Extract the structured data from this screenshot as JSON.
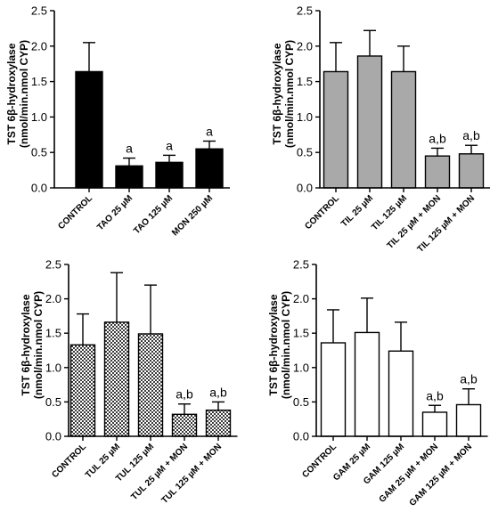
{
  "chart_data": [
    {
      "type": "bar",
      "ylabel_line1": "TST 6β-hydroxylase",
      "ylabel_line2": "(nmol/min.nmol CYP)",
      "ylim": [
        0,
        2.5
      ],
      "yticks": [
        "0.0",
        "0.5",
        "1.0",
        "1.5",
        "2.0",
        "2.5"
      ],
      "fill": "#000000",
      "pattern": "solid",
      "categories": [
        "CONTROL",
        "TAO 25 µM",
        "TAO 125 µM",
        "MON 250 µM"
      ],
      "values": [
        1.64,
        0.31,
        0.36,
        0.55
      ],
      "errors": [
        0.41,
        0.11,
        0.1,
        0.11
      ],
      "significance": [
        "",
        "a",
        "a",
        "a"
      ]
    },
    {
      "type": "bar",
      "ylabel_line1": "TST 6β-hydroxylase",
      "ylabel_line2": "(nmol/min.nmol CYP)",
      "ylim": [
        0,
        2.5
      ],
      "yticks": [
        "0.0",
        "0.5",
        "1.0",
        "1.5",
        "2.0",
        "2.5"
      ],
      "fill": "#a9a9a9",
      "pattern": "solid",
      "categories": [
        "CONTROL",
        "TIL 25 µM",
        "TIL 125 µM",
        "TIL 25 µM + MON",
        "TIL 125 µM + MON"
      ],
      "values": [
        1.64,
        1.86,
        1.64,
        0.45,
        0.48
      ],
      "errors": [
        0.41,
        0.36,
        0.36,
        0.11,
        0.12
      ],
      "significance": [
        "",
        "",
        "",
        "a,b",
        "a,b"
      ]
    },
    {
      "type": "bar",
      "ylabel_line1": "TST 6β-hydroxylase",
      "ylabel_line2": "(nmol/min.nmol CYP)",
      "ylim": [
        0,
        2.5
      ],
      "yticks": [
        "0.0",
        "0.5",
        "1.0",
        "1.5",
        "2.0",
        "2.5"
      ],
      "fill": "#555555",
      "pattern": "checker",
      "categories": [
        "CONTROL",
        "TUL 25 µM",
        "TUL 125 µM",
        "TUL 25 µM + MON",
        "TUL 125 µM + MON"
      ],
      "values": [
        1.33,
        1.66,
        1.49,
        0.32,
        0.38
      ],
      "errors": [
        0.45,
        0.72,
        0.71,
        0.15,
        0.12
      ],
      "significance": [
        "",
        "",
        "",
        "a,b",
        "a,b"
      ]
    },
    {
      "type": "bar",
      "ylabel_line1": "TST 6β-hydroxylase",
      "ylabel_line2": "(nmol/min.nmol CYP)",
      "ylim": [
        0,
        2.5
      ],
      "yticks": [
        "0.0",
        "0.5",
        "1.0",
        "1.5",
        "2.0",
        "2.5"
      ],
      "fill": "#ffffff",
      "pattern": "solid",
      "categories": [
        "CONTROL",
        "GAM 25 µM",
        "GAM 125 µM",
        "GAM 25 µM + MON",
        "GAM 125 µM + MON"
      ],
      "values": [
        1.36,
        1.51,
        1.24,
        0.35,
        0.46
      ],
      "errors": [
        0.48,
        0.5,
        0.42,
        0.1,
        0.23
      ],
      "significance": [
        "",
        "",
        "",
        "a,b",
        "a,b"
      ]
    }
  ]
}
